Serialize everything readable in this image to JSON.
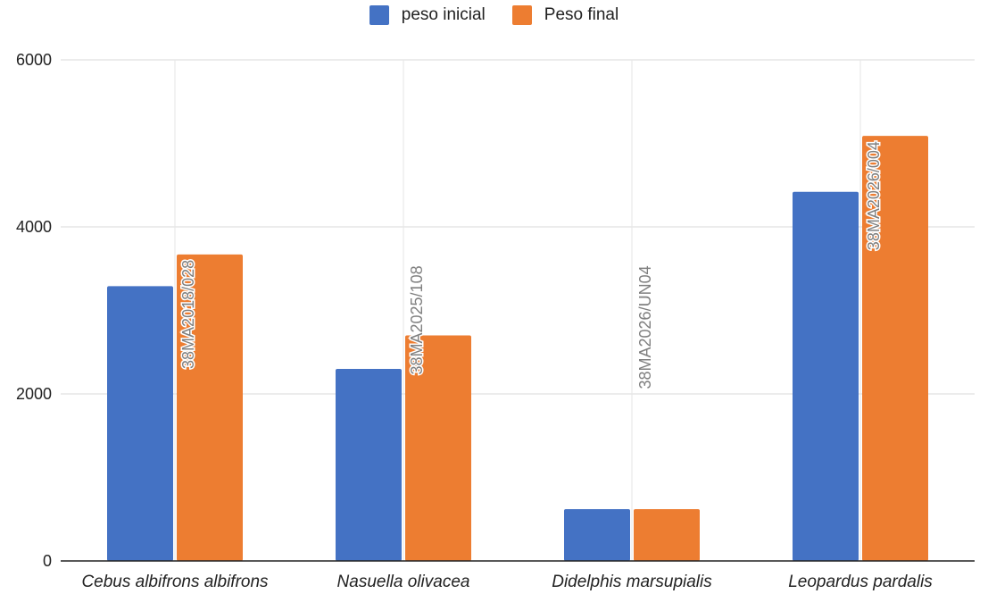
{
  "chart_data": {
    "type": "bar",
    "title": "",
    "xlabel": "",
    "ylabel": "",
    "categories": [
      "Cebus albifrons albifrons",
      "Nasuella olivacea",
      "Didelphis marsupialis",
      "Leopardus pardalis"
    ],
    "series": [
      {
        "name": "peso inicial",
        "color": "#4472c4",
        "values": [
          3290,
          2300,
          620,
          4420
        ]
      },
      {
        "name": "Peso final",
        "color": "#ed7d31",
        "values": [
          3670,
          2700,
          620,
          5090
        ]
      }
    ],
    "annotations": [
      "38MA2018/028",
      "38MA2025/108",
      "38MA2026/UN04",
      "38MA2026/004"
    ],
    "yticks": [
      0,
      2000,
      4000,
      6000
    ],
    "ylim": [
      0,
      6000
    ],
    "grid": true,
    "legend_position": "top-center",
    "colors": {
      "gridline": "#d9d9d9",
      "axis": "#222222",
      "annotation_text": "#7f7f7f"
    }
  }
}
